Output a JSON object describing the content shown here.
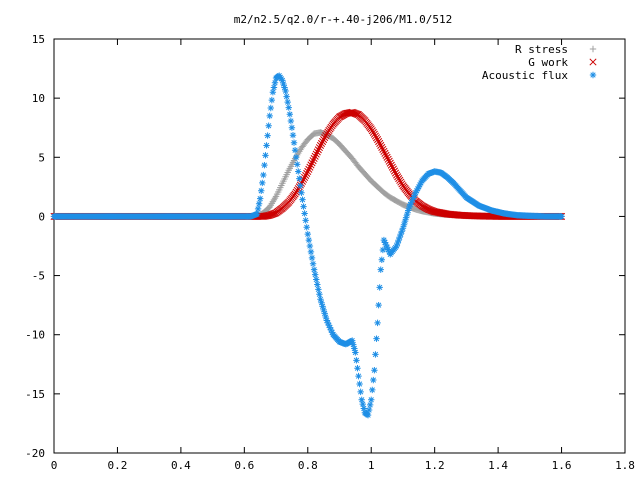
{
  "chart_data": {
    "type": "scatter",
    "title": "m2/n2.5/q2.0/r-+.40-j206/M1.0/512",
    "xlabel": "",
    "ylabel": "",
    "xlim": [
      0,
      1.8
    ],
    "ylim": [
      -20,
      15
    ],
    "x_ticks": [
      "0",
      "0.2",
      "0.4",
      "0.6",
      "0.8",
      "1",
      "1.2",
      "1.4",
      "1.6",
      "1.8"
    ],
    "y_ticks": [
      "15",
      "10",
      "5",
      "0",
      "-5",
      "-10",
      "-15",
      "-20"
    ],
    "legend_position": "top-right",
    "grid": false,
    "series": [
      {
        "name": "R stress",
        "marker": "plus",
        "color": "#a0a0a0",
        "x": [
          0,
          0.1,
          0.2,
          0.3,
          0.4,
          0.5,
          0.6,
          0.64,
          0.66,
          0.68,
          0.7,
          0.72,
          0.74,
          0.76,
          0.78,
          0.8,
          0.82,
          0.84,
          0.86,
          0.88,
          0.9,
          0.92,
          0.94,
          0.96,
          0.98,
          1.0,
          1.02,
          1.04,
          1.06,
          1.08,
          1.1,
          1.12,
          1.14,
          1.16,
          1.18,
          1.2,
          1.24,
          1.28,
          1.32,
          1.36,
          1.4,
          1.45,
          1.5,
          1.55,
          1.6
        ],
        "y": [
          0,
          0,
          0,
          0,
          0,
          0,
          0,
          0,
          0.3,
          0.8,
          1.7,
          2.8,
          3.9,
          4.9,
          5.8,
          6.5,
          7.0,
          7.1,
          6.9,
          6.6,
          6.1,
          5.5,
          4.9,
          4.2,
          3.6,
          3.0,
          2.5,
          2.0,
          1.6,
          1.3,
          1.0,
          0.8,
          0.6,
          0.45,
          0.35,
          0.25,
          0.15,
          0.1,
          0.05,
          0.03,
          0.02,
          0,
          0,
          0,
          0
        ]
      },
      {
        "name": "G work",
        "marker": "cross",
        "color": "#cc0000",
        "x": [
          0,
          0.1,
          0.2,
          0.3,
          0.4,
          0.5,
          0.6,
          0.64,
          0.66,
          0.68,
          0.7,
          0.72,
          0.74,
          0.76,
          0.78,
          0.8,
          0.82,
          0.84,
          0.86,
          0.88,
          0.9,
          0.92,
          0.94,
          0.96,
          0.98,
          1.0,
          1.02,
          1.04,
          1.06,
          1.08,
          1.1,
          1.12,
          1.14,
          1.16,
          1.18,
          1.2,
          1.24,
          1.28,
          1.32,
          1.36,
          1.4,
          1.45,
          1.5,
          1.55,
          1.6
        ],
        "y": [
          0,
          0,
          0,
          0,
          0,
          0,
          0,
          0,
          0,
          0.1,
          0.3,
          0.7,
          1.2,
          1.9,
          2.8,
          3.8,
          4.9,
          6.0,
          7.0,
          7.8,
          8.4,
          8.7,
          8.8,
          8.6,
          8.1,
          7.4,
          6.5,
          5.5,
          4.5,
          3.5,
          2.6,
          1.9,
          1.3,
          0.9,
          0.6,
          0.4,
          0.2,
          0.1,
          0.05,
          0.02,
          0,
          0,
          0,
          0,
          0
        ]
      },
      {
        "name": "Acoustic flux",
        "marker": "star",
        "color": "#1f8fe6",
        "x": [
          0,
          0.1,
          0.2,
          0.3,
          0.4,
          0.5,
          0.6,
          0.62,
          0.64,
          0.65,
          0.66,
          0.67,
          0.68,
          0.69,
          0.7,
          0.71,
          0.72,
          0.73,
          0.74,
          0.75,
          0.76,
          0.78,
          0.8,
          0.82,
          0.84,
          0.86,
          0.88,
          0.9,
          0.92,
          0.94,
          0.95,
          0.96,
          0.97,
          0.98,
          0.99,
          1.0,
          1.01,
          1.02,
          1.03,
          1.04,
          1.06,
          1.08,
          1.1,
          1.12,
          1.14,
          1.16,
          1.18,
          1.2,
          1.22,
          1.24,
          1.26,
          1.28,
          1.3,
          1.34,
          1.38,
          1.42,
          1.46,
          1.5,
          1.55,
          1.6
        ],
        "y": [
          0,
          0,
          0,
          0,
          0,
          0,
          0,
          0,
          0.2,
          1.5,
          3.5,
          6.0,
          8.5,
          10.5,
          11.7,
          11.9,
          11.5,
          10.6,
          9.2,
          7.5,
          5.6,
          2.0,
          -1.5,
          -4.5,
          -7.0,
          -8.8,
          -10.0,
          -10.6,
          -10.8,
          -10.5,
          -11.5,
          -13.5,
          -15.5,
          -16.6,
          -16.8,
          -15.5,
          -13.0,
          -9.0,
          -4.5,
          -2.0,
          -3.2,
          -2.5,
          -1.0,
          0.8,
          2.0,
          3.0,
          3.6,
          3.8,
          3.7,
          3.3,
          2.8,
          2.2,
          1.6,
          0.9,
          0.5,
          0.25,
          0.1,
          0.05,
          0,
          0
        ]
      }
    ]
  }
}
